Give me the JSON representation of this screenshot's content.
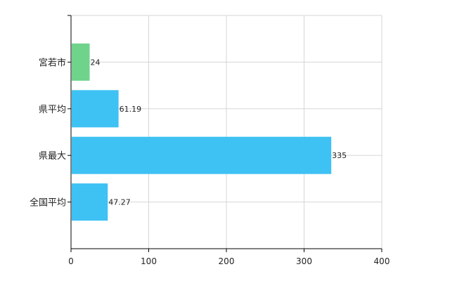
{
  "chart_data": {
    "type": "bar",
    "orientation": "horizontal",
    "categories": [
      "宮若市",
      "県平均",
      "県最大",
      "全国平均"
    ],
    "values": [
      24,
      61.19,
      335,
      47.27
    ],
    "value_labels": [
      "24",
      "61.19",
      "335",
      "47.27"
    ],
    "colors": [
      "#6fd38c",
      "#3ec1f3",
      "#3ec1f3",
      "#3ec1f3"
    ],
    "x_ticks": [
      "0",
      "100",
      "200",
      "300",
      "400"
    ],
    "xlim": [
      0,
      400
    ],
    "grid": true,
    "legend": "none"
  }
}
